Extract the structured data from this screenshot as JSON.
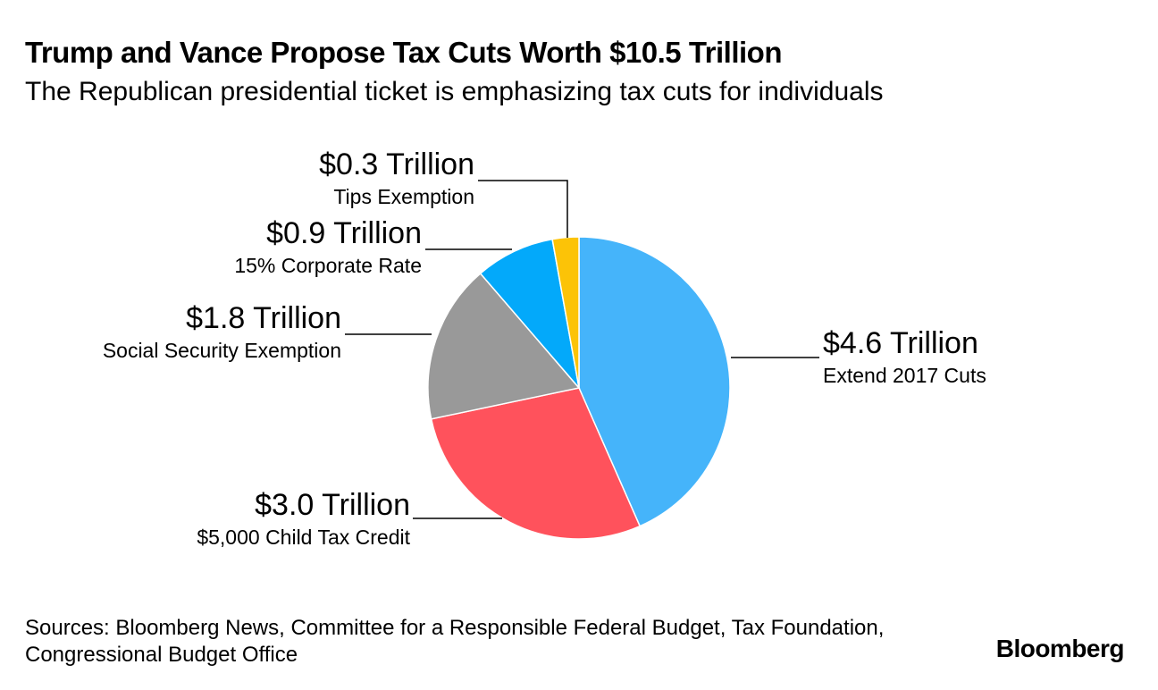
{
  "chart_data": {
    "type": "pie",
    "title": "Trump and Vance Propose Tax Cuts Worth $10.5 Trillion",
    "subtitle": "The Republican presidential ticket is emphasizing tax cuts for individuals",
    "slices": [
      {
        "label": "Extend 2017 Cuts",
        "value": 4.6,
        "value_label": "$4.6 Trillion",
        "color": "#45b4fa"
      },
      {
        "label": "$5,000 Child Tax Credit",
        "value": 3.0,
        "value_label": "$3.0 Trillion",
        "color": "#ff525c"
      },
      {
        "label": "Social Security Exemption",
        "value": 1.8,
        "value_label": "$1.8 Trillion",
        "color": "#999999"
      },
      {
        "label": "15% Corporate Rate",
        "value": 0.9,
        "value_label": "$0.9 Trillion",
        "color": "#03a9fa"
      },
      {
        "label": "Tips Exemption",
        "value": 0.3,
        "value_label": "$0.3 Trillion",
        "color": "#fcc307"
      }
    ],
    "total": 10.5,
    "units": "Trillion USD",
    "start_angle": "12 o'clock",
    "direction": "clockwise"
  },
  "footer": {
    "source": "Sources: Bloomberg News, Committee for a Responsible Federal Budget, Tax Foundation, Congressional Budget Office",
    "brand": "Bloomberg"
  }
}
